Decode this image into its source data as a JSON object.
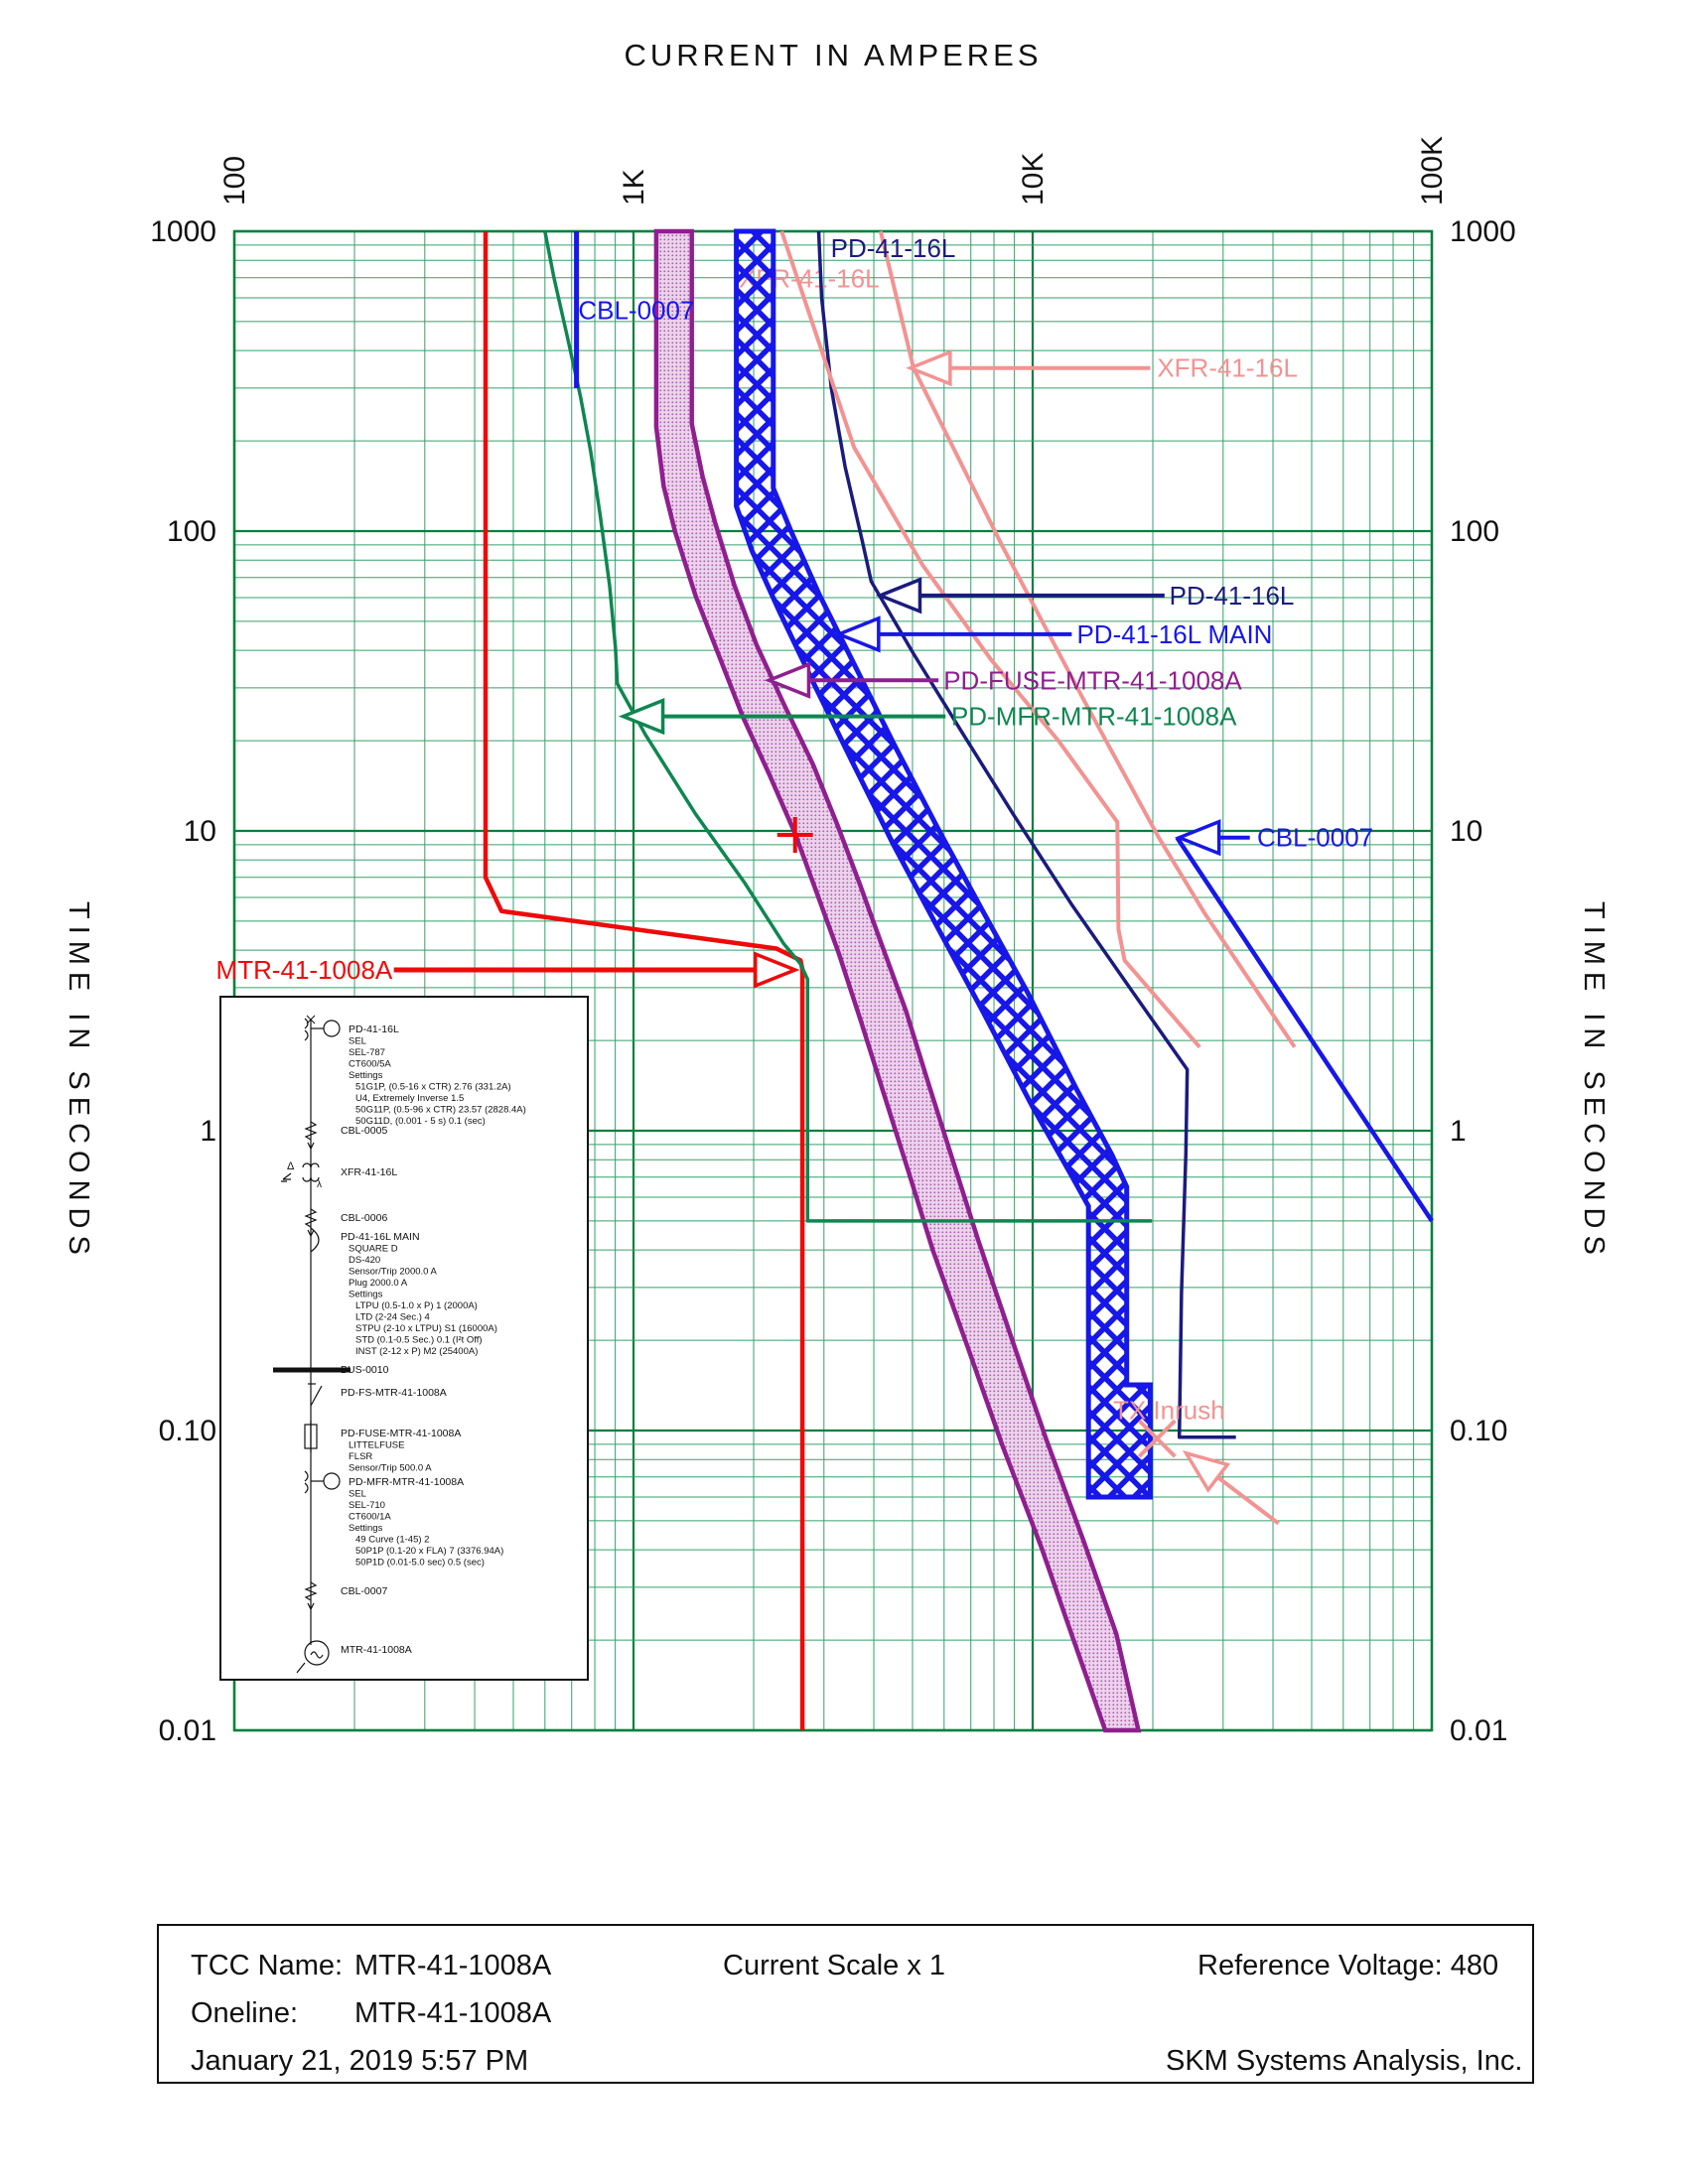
{
  "title": "CURRENT IN AMPERES",
  "y_axis_label_left": "TIME IN SECONDS",
  "y_axis_label_right": "TIME IN SECONDS",
  "colors": {
    "red": "#ee0a0a",
    "green": "#0f8651",
    "navy": "#1b1b7e",
    "blue": "#1717e8",
    "purple": "#8f1f8f",
    "salmon": "#f29392",
    "grid_major": "#07803e",
    "grid_minor": "#35a06b",
    "purple_fill": "#ecd4ec",
    "purple_dot": "#b060b0"
  },
  "chart_data": {
    "type": "line",
    "title": "CURRENT IN AMPERES",
    "xlabel": "CURRENT IN AMPERES",
    "ylabel": "TIME IN SECONDS",
    "x_scale": "log",
    "y_scale": "log",
    "xlim_amperes": [
      100,
      100000
    ],
    "ylim_seconds": [
      0.01,
      1000
    ],
    "grid": "log-log green grid, majors and minors",
    "x_ticks": [
      {
        "label": "100",
        "amperes": 100
      },
      {
        "label": "1K",
        "amperes": 1000
      },
      {
        "label": "10K",
        "amperes": 10000
      },
      {
        "label": "100K",
        "amperes": 100000
      }
    ],
    "y_ticks": [
      {
        "label": "1000",
        "seconds": 1000
      },
      {
        "label": "100",
        "seconds": 100
      },
      {
        "label": "10",
        "seconds": 10
      },
      {
        "label": "1",
        "seconds": 1
      },
      {
        "label": "0.10",
        "seconds": 0.1
      },
      {
        "label": "0.01",
        "seconds": 0.01
      }
    ],
    "series": [
      {
        "name": "MTR-41-1008A",
        "color": "red",
        "width": 4.5,
        "points": [
          [
            426,
            1000
          ],
          [
            426,
            7
          ],
          [
            467,
            5.4
          ],
          [
            2280,
            4.05
          ],
          [
            2620,
            3.7
          ],
          [
            2650,
            3.45
          ],
          [
            2650,
            0.01
          ]
        ]
      },
      {
        "name": "PD-MFR-MTR-41-1008A",
        "color": "green",
        "width": 3.5,
        "points": [
          [
            600,
            1000
          ],
          [
            632,
            700
          ],
          [
            684,
            440
          ],
          [
            737,
            280
          ],
          [
            781,
            185
          ],
          [
            826,
            112
          ],
          [
            871,
            66
          ],
          [
            901,
            41
          ],
          [
            911,
            31
          ],
          [
            1070,
            21
          ],
          [
            1430,
            11.4
          ],
          [
            1900,
            6.7
          ],
          [
            2380,
            4.2
          ],
          [
            2620,
            3.6
          ],
          [
            2730,
            3.2
          ],
          [
            2730,
            0.5
          ],
          [
            19900,
            0.5
          ]
        ]
      },
      {
        "name": "PD-41-16L",
        "color": "navy",
        "width": 3.5,
        "points": [
          [
            2910,
            1000
          ],
          [
            2960,
            600
          ],
          [
            3130,
            300
          ],
          [
            3390,
            164
          ],
          [
            3740,
            93
          ],
          [
            3940,
            68
          ],
          [
            5030,
            39
          ],
          [
            6700,
            21
          ],
          [
            8930,
            11.4
          ],
          [
            12500,
            5.7
          ],
          [
            17500,
            3.0
          ],
          [
            24400,
            1.6
          ],
          [
            24200,
            0.84
          ],
          [
            23600,
            0.29
          ],
          [
            23300,
            0.095
          ],
          [
            32300,
            0.095
          ]
        ]
      },
      {
        "name": "XFR-41-16L damage upper",
        "color": "salmon",
        "width": 4,
        "points": [
          [
            2350,
            1000
          ],
          [
            3570,
            190
          ],
          [
            5300,
            77
          ],
          [
            7900,
            37
          ],
          [
            11600,
            20
          ],
          [
            16300,
            10.7
          ],
          [
            16400,
            4.7
          ],
          [
            17000,
            3.7
          ],
          [
            26200,
            1.9
          ]
        ]
      },
      {
        "name": "XFR-41-16L damage lower",
        "color": "salmon",
        "width": 4,
        "points": [
          [
            4160,
            1000
          ],
          [
            5030,
            350
          ],
          [
            8400,
            89
          ],
          [
            13300,
            28
          ],
          [
            20700,
            9.5
          ],
          [
            27000,
            5.3
          ],
          [
            45300,
            1.9
          ]
        ]
      },
      {
        "name": "CBL-0007 withstand",
        "color": "blue",
        "width": 5,
        "points": [
          [
            720,
            1000
          ],
          [
            720,
            300
          ]
        ]
      },
      {
        "name": "CBL-0007 damage",
        "color": "blue",
        "width": 4.5,
        "points": [
          [
            23000,
            9.5
          ],
          [
            100000,
            0.5
          ]
        ]
      }
    ],
    "bands": [
      {
        "name": "PD-FUSE-MTR-41-1008A",
        "edge_color": "purple",
        "fill": "purple-dots",
        "edge_width": 4.5,
        "left": [
          [
            1140,
            1000
          ],
          [
            1140,
            223
          ],
          [
            1190,
            141
          ],
          [
            1270,
            100
          ],
          [
            1430,
            61
          ],
          [
            1630,
            39
          ],
          [
            1880,
            24
          ],
          [
            2190,
            15.4
          ],
          [
            2540,
            9.8
          ],
          [
            2880,
            6.2
          ],
          [
            3270,
            3.9
          ],
          [
            3720,
            2.3
          ],
          [
            4220,
            1.35
          ],
          [
            4870,
            0.74
          ],
          [
            5620,
            0.4
          ],
          [
            6870,
            0.19
          ],
          [
            8400,
            0.089
          ],
          [
            10500,
            0.041
          ],
          [
            12500,
            0.021
          ],
          [
            15200,
            0.01
          ]
        ],
        "right": [
          [
            1400,
            1000
          ],
          [
            1400,
            228
          ],
          [
            1490,
            152
          ],
          [
            1600,
            107
          ],
          [
            1790,
            66
          ],
          [
            2030,
            42
          ],
          [
            2380,
            26.5
          ],
          [
            2820,
            16.6
          ],
          [
            3240,
            10.5
          ],
          [
            3680,
            6.7
          ],
          [
            4180,
            4.2
          ],
          [
            4820,
            2.5
          ],
          [
            5470,
            1.45
          ],
          [
            6320,
            0.79
          ],
          [
            7310,
            0.43
          ],
          [
            8890,
            0.2
          ],
          [
            10800,
            0.094
          ],
          [
            13400,
            0.043
          ],
          [
            16200,
            0.021
          ],
          [
            18400,
            0.01
          ]
        ]
      },
      {
        "name": "PD-41-16L MAIN",
        "edge_color": "blue",
        "fill": "blue-crosshatch",
        "edge_width": 5,
        "left": [
          [
            1810,
            1000
          ],
          [
            1810,
            121
          ],
          [
            1980,
            86
          ],
          [
            2320,
            54
          ],
          [
            2830,
            31
          ],
          [
            3510,
            17.3
          ],
          [
            4480,
            9.0
          ],
          [
            5810,
            4.7
          ],
          [
            7500,
            2.5
          ],
          [
            10000,
            1.2
          ],
          [
            12500,
            0.71
          ],
          [
            13800,
            0.56
          ],
          [
            13800,
            0.06
          ]
        ],
        "right": [
          [
            2240,
            1000
          ],
          [
            2240,
            139
          ],
          [
            2480,
            100
          ],
          [
            2910,
            62
          ],
          [
            3570,
            36
          ],
          [
            4480,
            19.6
          ],
          [
            5810,
            10.1
          ],
          [
            7500,
            5.4
          ],
          [
            9700,
            2.9
          ],
          [
            12900,
            1.37
          ],
          [
            15800,
            0.83
          ],
          [
            17200,
            0.65
          ],
          [
            17200,
            0.142
          ],
          [
            19700,
            0.142
          ],
          [
            19700,
            0.06
          ]
        ]
      }
    ],
    "annotations": [
      {
        "id": "pd-41-16l-top",
        "text": "PD-41-16L",
        "color": "navy",
        "text_at": [
          3120,
          880
        ],
        "anchor": "start"
      },
      {
        "id": "xfr-41-16l-top",
        "text": "XFR-41-16L",
        "color": "salmon",
        "text_at": [
          1835,
          695
        ],
        "anchor": "start",
        "behind": true
      },
      {
        "id": "cbl-0007-top",
        "text": "CBL-0007",
        "color": "blue",
        "text_at": [
          727,
          545
        ],
        "anchor": "start"
      },
      {
        "id": "xfr-41-16l-arrow",
        "text": "XFR-41-16L",
        "color": "salmon",
        "text_at": [
          20500,
          350
        ],
        "anchor": "start",
        "arrow": {
          "from": [
            19700,
            350
          ],
          "tip": [
            4940,
            350
          ]
        }
      },
      {
        "id": "pd-41-16l-arrow",
        "text": "PD-41-16L",
        "color": "navy",
        "text_at": [
          22000,
          61
        ],
        "anchor": "start",
        "arrow": {
          "from": [
            21400,
            61
          ],
          "tip": [
            4150,
            61
          ]
        }
      },
      {
        "id": "pd-41-16l-main-arrow",
        "text": "PD-41-16L MAIN",
        "color": "blue",
        "text_at": [
          12900,
          45.3
        ],
        "anchor": "start",
        "arrow": {
          "from": [
            12530,
            45.3
          ],
          "tip": [
            3270,
            45.3
          ]
        }
      },
      {
        "id": "pd-fuse-arrow",
        "text": "PD-FUSE-MTR-41-1008A",
        "color": "purple",
        "text_at": [
          5980,
          31.8
        ],
        "anchor": "start",
        "arrow": {
          "from": [
            5810,
            31.8
          ],
          "tip": [
            2185,
            31.8
          ]
        }
      },
      {
        "id": "pd-mfr-arrow",
        "text": "PD-MFR-MTR-41-1008A",
        "color": "green",
        "text_at": [
          6250,
          24.1
        ],
        "anchor": "start",
        "arrow": {
          "from": [
            6050,
            24.1
          ],
          "tip": [
            942,
            24.1
          ]
        }
      },
      {
        "id": "cbl-0007-arrow",
        "text": "CBL-0007",
        "color": "blue",
        "text_at": [
          36500,
          9.5
        ],
        "anchor": "start",
        "arrow": {
          "from": [
            35000,
            9.5
          ],
          "tip": [
            23300,
            9.5
          ]
        }
      },
      {
        "id": "mtr-arrow",
        "text": "MTR-41-1008A",
        "color": "red",
        "text_at": [
          249,
          3.44
        ],
        "anchor": "end",
        "width": 5,
        "arrow": {
          "from": [
            251,
            3.44
          ],
          "tip": [
            2540,
            3.44
          ]
        }
      },
      {
        "id": "tx-inrush",
        "text": "TX Inrush",
        "color": "salmon",
        "text_at": [
          15900,
          0.117
        ],
        "anchor": "start",
        "arrow": {
          "from": [
            41300,
            0.049
          ],
          "tip": [
            24240,
            0.084
          ]
        }
      }
    ],
    "markers": [
      {
        "type": "plus",
        "color": "red",
        "at": [
          2540,
          9.7
        ]
      },
      {
        "type": "x",
        "color": "salmon",
        "at": [
          20500,
          0.094
        ]
      }
    ]
  },
  "inset": {
    "items": [
      {
        "symbol": "ct-relay",
        "label": "PD-41-16L",
        "lines": [
          "SEL",
          "SEL-787",
          "CT600/5A",
          "Settings",
          "  51G1P, (0.5-16 x CTR) 2.76 (331.2A)",
          "  U4, Extremely Inverse 1.5",
          "  50G11P, (0.5-96 x CTR) 23.57 (2828.4A)",
          "  50G11D, (0.001 - 5 s) 0.1 (sec)"
        ]
      },
      {
        "symbol": "cable",
        "label": "CBL-0005",
        "lines": []
      },
      {
        "symbol": "transformer",
        "label": "XFR-41-16L",
        "lines": []
      },
      {
        "symbol": "cable",
        "label": "CBL-0006",
        "lines": []
      },
      {
        "symbol": "breaker",
        "label": "PD-41-16L MAIN",
        "lines": [
          "SQUARE D",
          "DS-420",
          "Sensor/Trip 2000.0 A",
          "Plug 2000.0 A",
          "Settings",
          "  LTPU (0.5-1.0 x P) 1 (2000A)",
          "  LTD (2-24 Sec.) 4",
          "  STPU (2-10 x LTPU) S1 (16000A)",
          "  STD (0.1-0.5 Sec.) 0.1 (I²t Off)",
          "  INST (2-12 x P) M2 (25400A)"
        ]
      },
      {
        "symbol": "bus",
        "label": "BUS-0010",
        "lines": []
      },
      {
        "symbol": "switch",
        "label": "PD-FS-MTR-41-1008A",
        "lines": []
      },
      {
        "symbol": "fuse",
        "label": "PD-FUSE-MTR-41-1008A",
        "lines": [
          "LITTELFUSE",
          "FLSR",
          "Sensor/Trip 500.0 A"
        ]
      },
      {
        "symbol": "ct-relay",
        "label": "PD-MFR-MTR-41-1008A",
        "lines": [
          "SEL",
          "SEL-710",
          "CT600/1A",
          "Settings",
          "  49 Curve (1-45) 2",
          "  50P1P (0.1-20 x FLA) 7 (3376.94A)",
          "  50P1D (0.01-5.0 sec) 0.5 (sec)"
        ]
      },
      {
        "symbol": "cable",
        "label": "CBL-0007",
        "lines": []
      },
      {
        "symbol": "motor",
        "label": "MTR-41-1008A",
        "lines": []
      }
    ]
  },
  "footer": {
    "tcc_label": "TCC Name:",
    "tcc_value": "MTR-41-1008A",
    "oneline_label": "Oneline:",
    "oneline_value": "MTR-41-1008A",
    "datetime": "January 21, 2019  5:57 PM",
    "current_scale": "Current Scale  x 1",
    "reference_voltage": "Reference Voltage: 480",
    "company": "SKM Systems Analysis, Inc."
  }
}
